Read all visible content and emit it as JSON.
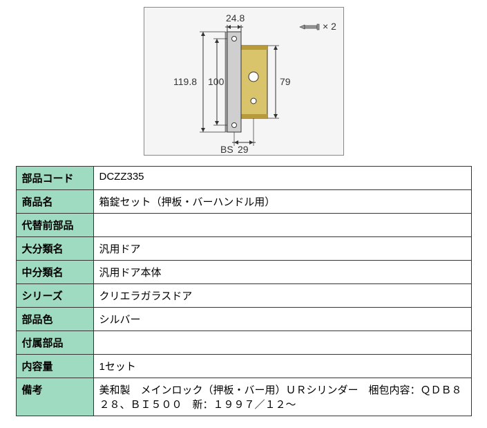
{
  "diagram": {
    "dims": {
      "top_width": "24.8",
      "outer_height": "119.8",
      "inner_height_left": "100",
      "inner_height_right": "79",
      "bs": "BS",
      "bs_value": "29"
    },
    "screw_label": "× 2",
    "colors": {
      "panel_bg": "#f5f5f5",
      "plate_face": "#cfcfcf",
      "plate_side": "#9a9a9a",
      "lock_body": "#d9c36b",
      "lock_body_dark": "#b89a3a",
      "outline": "#333333"
    }
  },
  "table": {
    "rows": [
      {
        "label": "部品コード",
        "value": "DCZZ335"
      },
      {
        "label": "商品名",
        "value": "箱錠セット（押板・バーハンドル用）"
      },
      {
        "label": "代替前部品",
        "value": ""
      },
      {
        "label": "大分類名",
        "value": "汎用ドア"
      },
      {
        "label": "中分類名",
        "value": "汎用ドア本体"
      },
      {
        "label": "シリーズ",
        "value": "クリエラガラスドア"
      },
      {
        "label": "部品色",
        "value": "シルバー"
      },
      {
        "label": "付属部品",
        "value": ""
      },
      {
        "label": "内容量",
        "value": "1セット"
      },
      {
        "label": "備考",
        "value": "美和製　メインロック（押板・バー用）ＵＲシリンダー　梱包内容：ＱＤＢ８２８、ＢＩ５００　新：１９９７／１２～"
      }
    ],
    "label_bg": "#9fdbc0",
    "value_bg": "#ffffff",
    "border_color": "#333333"
  }
}
